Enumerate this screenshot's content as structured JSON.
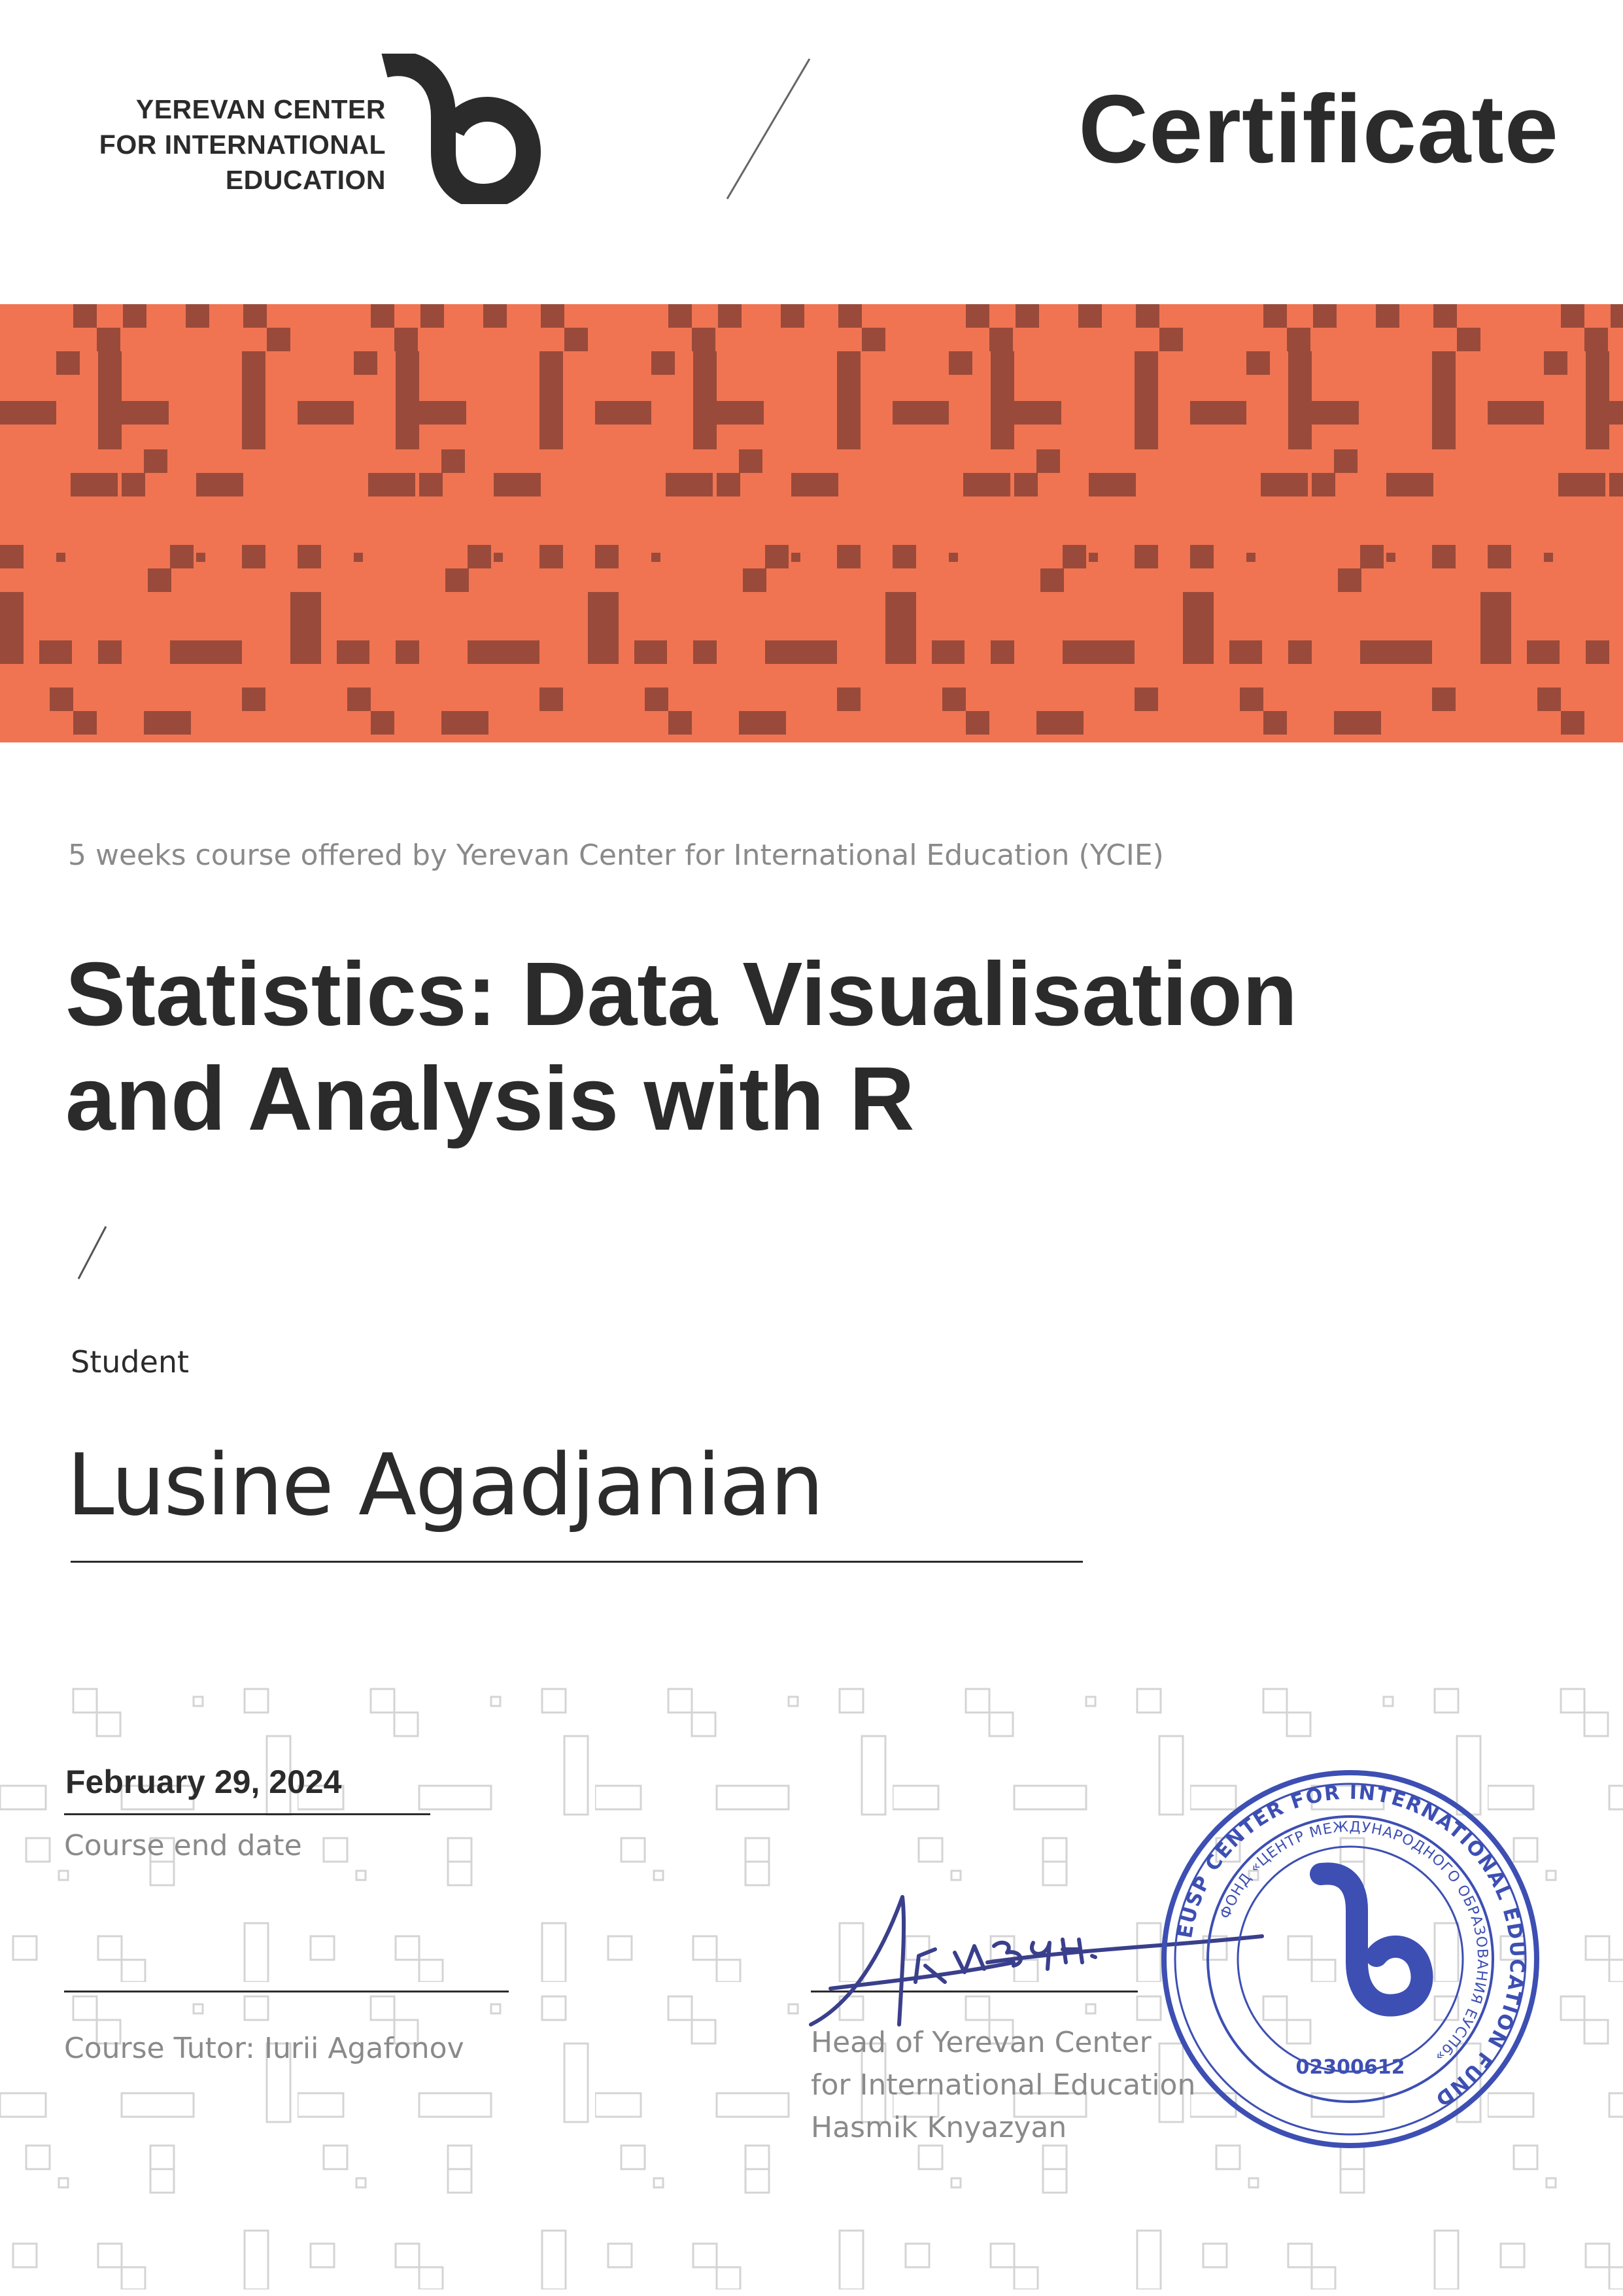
{
  "header": {
    "logo_lines": [
      "YEREVAN CENTER",
      "FOR INTERNATIONAL",
      "EDUCATION"
    ],
    "logo_mark_icon": "ycie-logo-mark-icon",
    "title": "Certificate"
  },
  "banner": {
    "color": "#f07452",
    "pattern_color": "#9a4a3a"
  },
  "course": {
    "offer_text": "5 weeks course offered by Yerevan Center for International Education (YCIE)",
    "title_line1": "Statistics: Data Visualisation",
    "title_line2": "and Analysis with R"
  },
  "student": {
    "label": "Student",
    "name": "Lusine Agadjanian"
  },
  "footer": {
    "end_date": "February 29, 2024",
    "end_date_label": "Course end date",
    "tutor_label": "Course Tutor: Iurii Agafonov",
    "head_label_lines": [
      "Head of Yerevan Center",
      "for International Education",
      "Hasmik Knyazyan"
    ]
  },
  "signature": {
    "icon": "handwritten-signature-icon",
    "text": "Ккнязян."
  },
  "stamp": {
    "icon": "official-seal-icon",
    "color": "#3d4fb3",
    "ring_text_en": "EUSP CENTER FOR INTERNATIONAL EDUCATION FUND",
    "ring_text_ru": "ФОНД «ЦЕНТР МЕЖДУНАРОДНОГО ОБРАЗОВАНИЯ ЕУСПб»",
    "number": "02300612"
  }
}
